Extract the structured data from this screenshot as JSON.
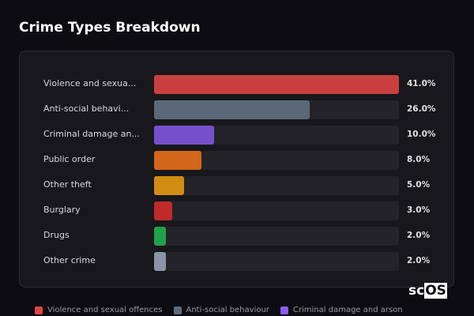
{
  "title": "Crime Types Breakdown",
  "logo": {
    "a": "sc",
    "b": "OS"
  },
  "chart_data": {
    "type": "bar",
    "orientation": "horizontal",
    "categories": [
      "Violence and sexua...",
      "Anti-social behavi...",
      "Criminal damage an...",
      "Public order",
      "Other theft",
      "Burglary",
      "Drugs",
      "Other crime"
    ],
    "values": [
      41.0,
      26.0,
      10.0,
      8.0,
      5.0,
      3.0,
      2.0,
      2.0
    ],
    "value_labels": [
      "41.0%",
      "26.0%",
      "10.0%",
      "8.0%",
      "5.0%",
      "3.0%",
      "2.0%",
      "2.0%"
    ],
    "colors": [
      "#c93f3f",
      "#5b6878",
      "#7650cc",
      "#d2661a",
      "#d18c14",
      "#c02a2a",
      "#22a04a",
      "#8a94a6"
    ],
    "xlim": [
      0,
      41
    ],
    "grid": false,
    "legend_position": "bottom",
    "legend": [
      {
        "name": "Violence and sexual offences",
        "color": "#e04545"
      },
      {
        "name": "Anti-social behaviour",
        "color": "#5d6b7d"
      },
      {
        "name": "Criminal damage and arson",
        "color": "#8b5cf6"
      }
    ]
  }
}
